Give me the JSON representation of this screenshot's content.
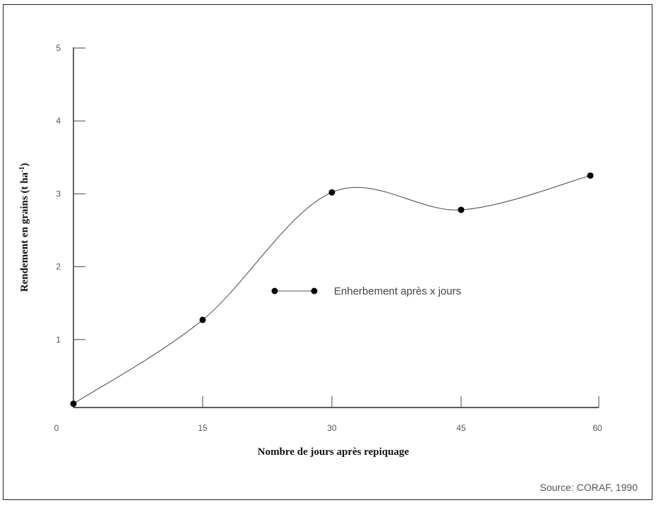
{
  "chart_data": {
    "type": "line",
    "title": "",
    "xlabel": "Nombre de jours après repiquage",
    "ylabel": "Rendement en grains (t ha",
    "ylabel_superscript": "-1",
    "ylabel_suffix": ")",
    "xlim": [
      0,
      60
    ],
    "ylim": [
      0,
      5
    ],
    "x_ticks": [
      "0",
      "15",
      "30",
      "45",
      "60"
    ],
    "y_ticks": [
      "1",
      "2",
      "3",
      "4",
      "5"
    ],
    "grid": false,
    "legend": {
      "placement": "center",
      "label": "Enherbement après x jours"
    },
    "series": [
      {
        "name": "Enherbement après x jours",
        "x": [
          0,
          15,
          30,
          45,
          60
        ],
        "y": [
          0.12,
          1.27,
          3.02,
          2.78,
          3.25
        ]
      }
    ],
    "source": "Source: CORAF, 1990",
    "colors": {
      "line": "#555555",
      "marker": "#000000",
      "axis": "#222222"
    }
  }
}
